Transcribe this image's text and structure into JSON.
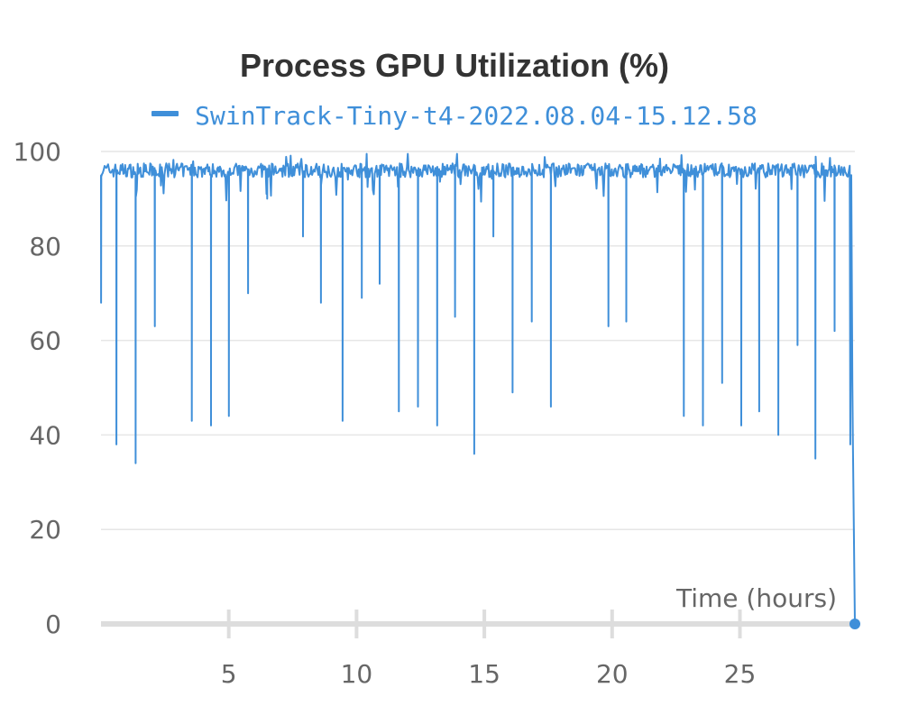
{
  "chart_data": {
    "type": "line",
    "title": "Process GPU Utilization (%)",
    "xlabel": "Time (hours)",
    "ylabel": "",
    "xlim": [
      0,
      29.5
    ],
    "ylim": [
      0,
      100
    ],
    "grid": true,
    "legend_position": "top-center",
    "x_ticks": [
      5,
      10,
      15,
      20,
      25
    ],
    "y_ticks": [
      0,
      20,
      40,
      60,
      80,
      100
    ],
    "colors": {
      "series": "#3f8fd9",
      "grid": "#e6e6e6",
      "baseline": "#dddddd",
      "text": "#666666",
      "title": "#333333"
    },
    "series": [
      {
        "name": "SwinTrack-Tiny-t4-2022.08.04-15.12.58",
        "baseline": 96,
        "start": {
          "x": 0,
          "y": 68
        },
        "end": {
          "x": 29.5,
          "y": 0
        },
        "dips": [
          {
            "x": 0.0,
            "y": 68
          },
          {
            "x": 0.6,
            "y": 38
          },
          {
            "x": 1.35,
            "y": 34
          },
          {
            "x": 2.1,
            "y": 63
          },
          {
            "x": 3.55,
            "y": 43
          },
          {
            "x": 4.3,
            "y": 42
          },
          {
            "x": 5.0,
            "y": 44
          },
          {
            "x": 5.75,
            "y": 70
          },
          {
            "x": 6.5,
            "y": 90
          },
          {
            "x": 7.9,
            "y": 82
          },
          {
            "x": 8.6,
            "y": 68
          },
          {
            "x": 9.45,
            "y": 43
          },
          {
            "x": 10.2,
            "y": 69
          },
          {
            "x": 10.9,
            "y": 72
          },
          {
            "x": 11.65,
            "y": 45
          },
          {
            "x": 12.4,
            "y": 46
          },
          {
            "x": 13.15,
            "y": 42
          },
          {
            "x": 13.85,
            "y": 65
          },
          {
            "x": 14.6,
            "y": 36
          },
          {
            "x": 15.35,
            "y": 82
          },
          {
            "x": 16.1,
            "y": 49
          },
          {
            "x": 16.85,
            "y": 64
          },
          {
            "x": 17.6,
            "y": 46
          },
          {
            "x": 19.85,
            "y": 63
          },
          {
            "x": 20.55,
            "y": 64
          },
          {
            "x": 22.8,
            "y": 44
          },
          {
            "x": 23.55,
            "y": 42
          },
          {
            "x": 24.3,
            "y": 51
          },
          {
            "x": 25.05,
            "y": 42
          },
          {
            "x": 25.75,
            "y": 45
          },
          {
            "x": 26.5,
            "y": 40
          },
          {
            "x": 27.25,
            "y": 59
          },
          {
            "x": 27.95,
            "y": 35
          },
          {
            "x": 28.7,
            "y": 62
          },
          {
            "x": 29.3,
            "y": 38
          },
          {
            "x": 29.4,
            "y": 51
          }
        ]
      }
    ]
  }
}
